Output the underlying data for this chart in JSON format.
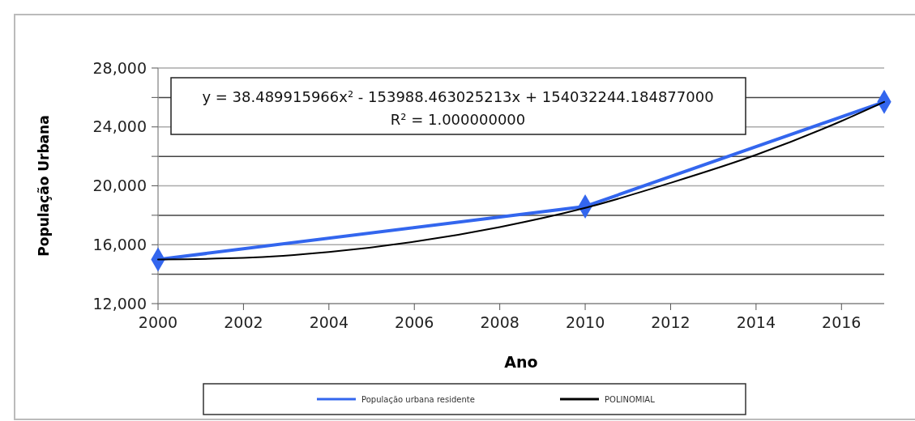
{
  "chart_data": {
    "type": "line",
    "xlabel": "Ano",
    "ylabel": "População Urbana",
    "annotations": [
      "y = 38.489915966x² - 153988.463025213x + 154032244.184877000",
      "R² = 1.000000000"
    ],
    "series": [
      {
        "name": "População urbana residente",
        "color": "#3366ee",
        "x": [
          2000,
          2010,
          2017
        ],
        "values": [
          15000,
          18600,
          25700
        ],
        "marker": "diamond"
      },
      {
        "name": "POLINOMIAL",
        "color": "#000000",
        "x": [
          2000,
          2002,
          2004,
          2006,
          2008,
          2010,
          2012,
          2014,
          2016,
          2017
        ],
        "values": [
          15000,
          15100,
          15500,
          16200,
          17200,
          18500,
          20200,
          22100,
          24400,
          25700
        ],
        "marker": "none"
      }
    ],
    "xlim": [
      2000,
      2017
    ],
    "xticks": [
      2000,
      2002,
      2004,
      2006,
      2008,
      2010,
      2012,
      2014,
      2016
    ],
    "ylim": [
      12000,
      28000
    ],
    "yticks": [
      {
        "value": 12000,
        "label": "12,000"
      },
      {
        "value": 14000,
        "label": null
      },
      {
        "value": 16000,
        "label": "16,000"
      },
      {
        "value": 18000,
        "label": null
      },
      {
        "value": 20000,
        "label": "20,000"
      },
      {
        "value": 22000,
        "label": null
      },
      {
        "value": 24000,
        "label": "24,000"
      },
      {
        "value": 26000,
        "label": null
      },
      {
        "value": 28000,
        "label": "28,000"
      }
    ],
    "grid": "y",
    "legend": "bottom"
  }
}
